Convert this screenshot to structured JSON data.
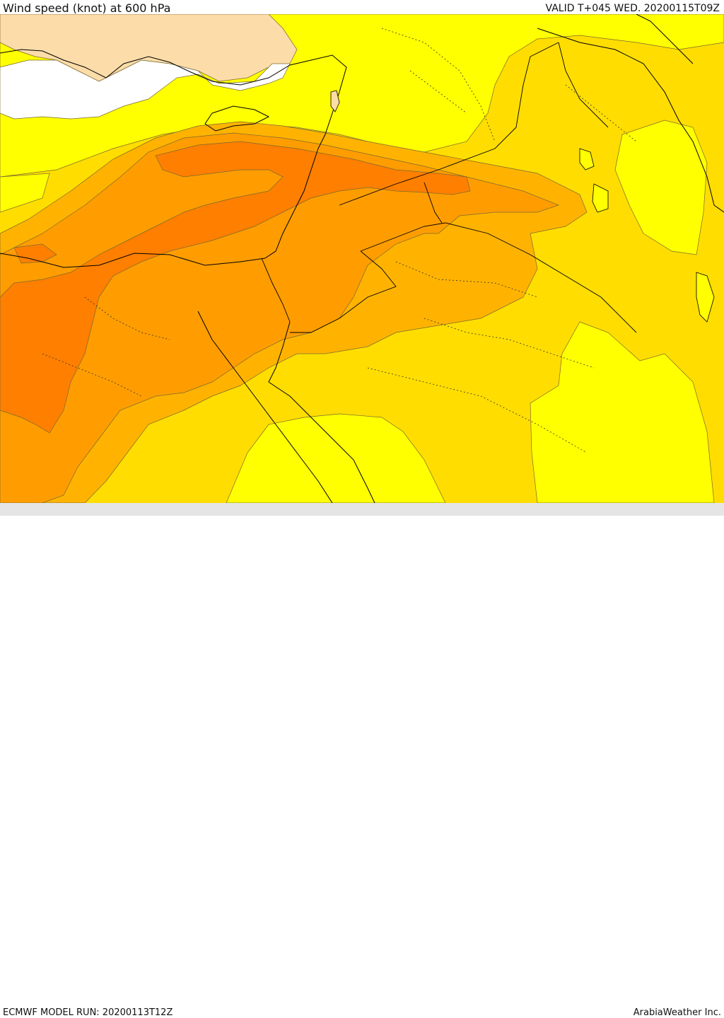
{
  "header": {
    "title": "Wind speed (knot) at 600 hPa",
    "valid": "VALID T+045 WED. 20200115T09Z"
  },
  "footer": {
    "model_run": "ECMWF MODEL RUN: 20200113T12Z",
    "credit": "ArabiaWeather Inc."
  },
  "colors": {
    "level_lowest": "#ffffff",
    "level_1": "#fcdca8",
    "level_2": "#ffff00",
    "level_3": "#ffdd00",
    "level_4": "#ffb300",
    "level_5": "#ff9d00",
    "level_6": "#ff7f00",
    "coastline": "#000000"
  }
}
